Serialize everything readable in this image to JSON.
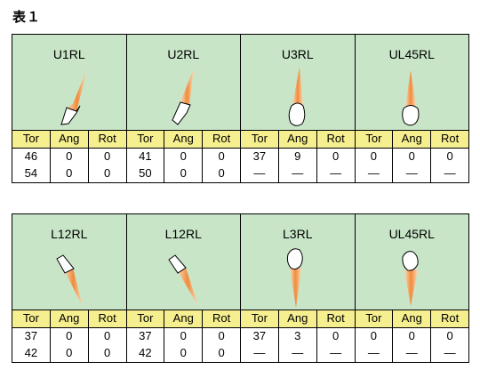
{
  "title": "表１",
  "headers": [
    "Tor",
    "Ang",
    "Rot"
  ],
  "rows": [
    {
      "cells": [
        {
          "name": "U1RL",
          "values": [
            [
              "46",
              "0",
              "0"
            ],
            [
              "54",
              "0",
              "0"
            ]
          ]
        },
        {
          "name": "U2RL",
          "values": [
            [
              "41",
              "0",
              "0"
            ],
            [
              "50",
              "0",
              "0"
            ]
          ]
        },
        {
          "name": "U3RL",
          "values": [
            [
              "37",
              "9",
              "0"
            ],
            [
              "—",
              "—",
              "—"
            ]
          ]
        },
        {
          "name": "UL45RL",
          "values": [
            [
              "0",
              "0",
              "0"
            ],
            [
              "—",
              "—",
              "—"
            ]
          ]
        }
      ]
    },
    {
      "cells": [
        {
          "name": "L12RL",
          "values": [
            [
              "37",
              "0",
              "0"
            ],
            [
              "42",
              "0",
              "0"
            ]
          ]
        },
        {
          "name": "L12RL",
          "values": [
            [
              "37",
              "0",
              "0"
            ],
            [
              "42",
              "0",
              "0"
            ]
          ]
        },
        {
          "name": "L3RL",
          "values": [
            [
              "37",
              "3",
              "0"
            ],
            [
              "—",
              "—",
              "—"
            ]
          ]
        },
        {
          "name": "UL45RL",
          "values": [
            [
              "0",
              "0",
              "0"
            ],
            [
              "—",
              "—",
              "—"
            ]
          ]
        }
      ]
    }
  ],
  "colors": {
    "image_bg": "#c8e5c8",
    "header_bg": "#f6ef8f",
    "root": "#f08c3c",
    "crown": "#ffffff"
  }
}
